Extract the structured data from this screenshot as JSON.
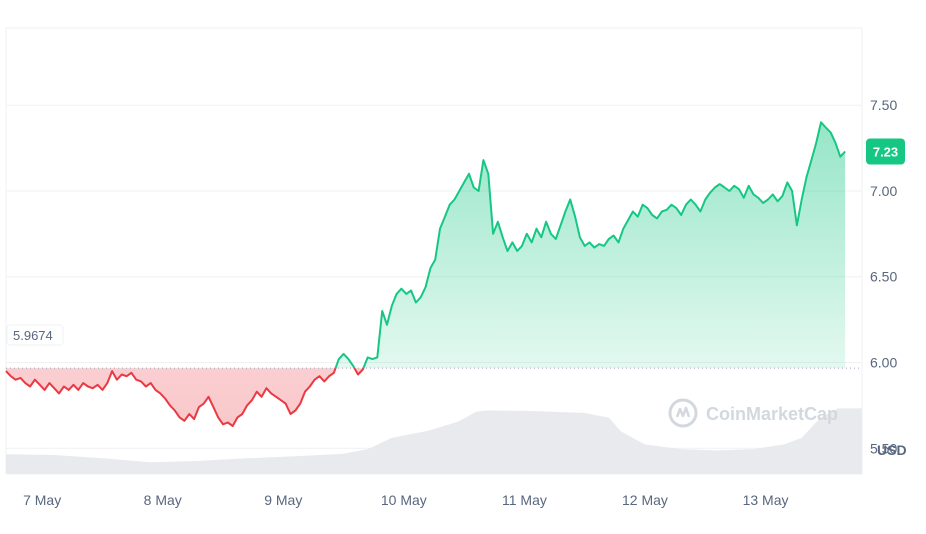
{
  "chart_data": {
    "type": "area",
    "baseline": 5.9674,
    "baseline_label": "5.9674",
    "current_value": 7.23,
    "current_value_label": "7.23",
    "unit_label": "USD",
    "watermark": "CoinMarketCap",
    "ylim": [
      5.35,
      7.95
    ],
    "y_ticks": [
      {
        "value": 7.5,
        "label": "7.50"
      },
      {
        "value": 7.0,
        "label": "7.00"
      },
      {
        "value": 6.5,
        "label": "6.50"
      },
      {
        "value": 6.0,
        "label": "6.00"
      },
      {
        "value": 5.5,
        "label": "5.50"
      }
    ],
    "x_ticks": [
      {
        "value": 0.3,
        "label": "7 May"
      },
      {
        "value": 1.3,
        "label": "8 May"
      },
      {
        "value": 2.3,
        "label": "9 May"
      },
      {
        "value": 3.3,
        "label": "10 May"
      },
      {
        "value": 4.3,
        "label": "11 May"
      },
      {
        "value": 5.3,
        "label": "12 May"
      },
      {
        "value": 6.3,
        "label": "13 May"
      }
    ],
    "xlim": [
      0,
      7.1
    ],
    "grid": true,
    "colors": {
      "up": "#16c784",
      "down": "#ea3943",
      "up_fill": "#16c784",
      "down_fill": "#ea3943",
      "volume": "#e6e8ec",
      "grid": "#f0f1f3",
      "axis_text": "#58667e",
      "badge": "#16c784"
    },
    "price_series": {
      "name": "",
      "points": [
        [
          0.0,
          5.95
        ],
        [
          0.04,
          5.92
        ],
        [
          0.08,
          5.9
        ],
        [
          0.12,
          5.91
        ],
        [
          0.16,
          5.88
        ],
        [
          0.2,
          5.86
        ],
        [
          0.24,
          5.9
        ],
        [
          0.28,
          5.87
        ],
        [
          0.32,
          5.84
        ],
        [
          0.36,
          5.88
        ],
        [
          0.4,
          5.85
        ],
        [
          0.44,
          5.82
        ],
        [
          0.48,
          5.86
        ],
        [
          0.52,
          5.84
        ],
        [
          0.56,
          5.87
        ],
        [
          0.6,
          5.84
        ],
        [
          0.64,
          5.88
        ],
        [
          0.68,
          5.86
        ],
        [
          0.72,
          5.85
        ],
        [
          0.76,
          5.87
        ],
        [
          0.8,
          5.84
        ],
        [
          0.84,
          5.88
        ],
        [
          0.88,
          5.95
        ],
        [
          0.92,
          5.9
        ],
        [
          0.96,
          5.93
        ],
        [
          1.0,
          5.92
        ],
        [
          1.04,
          5.94
        ],
        [
          1.08,
          5.9
        ],
        [
          1.12,
          5.89
        ],
        [
          1.16,
          5.86
        ],
        [
          1.2,
          5.88
        ],
        [
          1.24,
          5.84
        ],
        [
          1.28,
          5.82
        ],
        [
          1.32,
          5.79
        ],
        [
          1.36,
          5.75
        ],
        [
          1.4,
          5.72
        ],
        [
          1.44,
          5.68
        ],
        [
          1.48,
          5.66
        ],
        [
          1.52,
          5.7
        ],
        [
          1.56,
          5.67
        ],
        [
          1.6,
          5.74
        ],
        [
          1.64,
          5.76
        ],
        [
          1.68,
          5.8
        ],
        [
          1.72,
          5.74
        ],
        [
          1.76,
          5.68
        ],
        [
          1.8,
          5.64
        ],
        [
          1.84,
          5.65
        ],
        [
          1.88,
          5.63
        ],
        [
          1.92,
          5.68
        ],
        [
          1.96,
          5.7
        ],
        [
          2.0,
          5.75
        ],
        [
          2.04,
          5.78
        ],
        [
          2.08,
          5.83
        ],
        [
          2.12,
          5.8
        ],
        [
          2.16,
          5.85
        ],
        [
          2.2,
          5.82
        ],
        [
          2.24,
          5.8
        ],
        [
          2.28,
          5.78
        ],
        [
          2.32,
          5.76
        ],
        [
          2.36,
          5.7
        ],
        [
          2.4,
          5.72
        ],
        [
          2.44,
          5.76
        ],
        [
          2.48,
          5.83
        ],
        [
          2.52,
          5.86
        ],
        [
          2.56,
          5.9
        ],
        [
          2.6,
          5.92
        ],
        [
          2.64,
          5.89
        ],
        [
          2.68,
          5.92
        ],
        [
          2.72,
          5.94
        ],
        [
          2.76,
          6.02
        ],
        [
          2.8,
          6.05
        ],
        [
          2.84,
          6.02
        ],
        [
          2.88,
          5.98
        ],
        [
          2.92,
          5.93
        ],
        [
          2.96,
          5.96
        ],
        [
          3.0,
          6.03
        ],
        [
          3.04,
          6.02
        ],
        [
          3.08,
          6.03
        ],
        [
          3.12,
          6.3
        ],
        [
          3.16,
          6.22
        ],
        [
          3.2,
          6.33
        ],
        [
          3.24,
          6.4
        ],
        [
          3.28,
          6.43
        ],
        [
          3.32,
          6.4
        ],
        [
          3.36,
          6.42
        ],
        [
          3.4,
          6.35
        ],
        [
          3.44,
          6.38
        ],
        [
          3.48,
          6.44
        ],
        [
          3.52,
          6.55
        ],
        [
          3.56,
          6.6
        ],
        [
          3.6,
          6.78
        ],
        [
          3.64,
          6.85
        ],
        [
          3.68,
          6.92
        ],
        [
          3.72,
          6.95
        ],
        [
          3.76,
          7.0
        ],
        [
          3.8,
          7.05
        ],
        [
          3.84,
          7.1
        ],
        [
          3.88,
          7.02
        ],
        [
          3.92,
          7.0
        ],
        [
          3.96,
          7.18
        ],
        [
          4.0,
          7.1
        ],
        [
          4.04,
          6.75
        ],
        [
          4.08,
          6.82
        ],
        [
          4.12,
          6.73
        ],
        [
          4.16,
          6.65
        ],
        [
          4.2,
          6.7
        ],
        [
          4.24,
          6.65
        ],
        [
          4.28,
          6.68
        ],
        [
          4.32,
          6.75
        ],
        [
          4.36,
          6.7
        ],
        [
          4.4,
          6.78
        ],
        [
          4.44,
          6.73
        ],
        [
          4.48,
          6.82
        ],
        [
          4.52,
          6.75
        ],
        [
          4.56,
          6.72
        ],
        [
          4.6,
          6.8
        ],
        [
          4.64,
          6.88
        ],
        [
          4.68,
          6.95
        ],
        [
          4.72,
          6.85
        ],
        [
          4.76,
          6.73
        ],
        [
          4.8,
          6.68
        ],
        [
          4.84,
          6.7
        ],
        [
          4.88,
          6.67
        ],
        [
          4.92,
          6.69
        ],
        [
          4.96,
          6.68
        ],
        [
          5.0,
          6.72
        ],
        [
          5.04,
          6.74
        ],
        [
          5.08,
          6.7
        ],
        [
          5.12,
          6.78
        ],
        [
          5.16,
          6.83
        ],
        [
          5.2,
          6.88
        ],
        [
          5.24,
          6.85
        ],
        [
          5.28,
          6.92
        ],
        [
          5.32,
          6.9
        ],
        [
          5.36,
          6.86
        ],
        [
          5.4,
          6.84
        ],
        [
          5.44,
          6.88
        ],
        [
          5.48,
          6.89
        ],
        [
          5.52,
          6.92
        ],
        [
          5.56,
          6.9
        ],
        [
          5.6,
          6.86
        ],
        [
          5.64,
          6.92
        ],
        [
          5.68,
          6.95
        ],
        [
          5.72,
          6.92
        ],
        [
          5.76,
          6.88
        ],
        [
          5.8,
          6.95
        ],
        [
          5.84,
          6.99
        ],
        [
          5.88,
          7.02
        ],
        [
          5.92,
          7.04
        ],
        [
          5.96,
          7.02
        ],
        [
          6.0,
          7.0
        ],
        [
          6.04,
          7.03
        ],
        [
          6.08,
          7.01
        ],
        [
          6.12,
          6.96
        ],
        [
          6.16,
          7.03
        ],
        [
          6.2,
          6.98
        ],
        [
          6.24,
          6.96
        ],
        [
          6.28,
          6.93
        ],
        [
          6.32,
          6.95
        ],
        [
          6.36,
          6.98
        ],
        [
          6.4,
          6.94
        ],
        [
          6.44,
          6.97
        ],
        [
          6.48,
          7.05
        ],
        [
          6.52,
          7.0
        ],
        [
          6.56,
          6.8
        ],
        [
          6.6,
          6.95
        ],
        [
          6.64,
          7.08
        ],
        [
          6.68,
          7.18
        ],
        [
          6.72,
          7.28
        ],
        [
          6.76,
          7.4
        ],
        [
          6.8,
          7.37
        ],
        [
          6.84,
          7.34
        ],
        [
          6.88,
          7.28
        ],
        [
          6.92,
          7.2
        ],
        [
          6.96,
          7.23
        ]
      ]
    },
    "volume_series": {
      "name": "",
      "ylim": [
        0,
        1
      ],
      "points": [
        [
          0.0,
          0.3
        ],
        [
          0.4,
          0.29
        ],
        [
          0.8,
          0.24
        ],
        [
          1.2,
          0.18
        ],
        [
          1.6,
          0.2
        ],
        [
          2.0,
          0.24
        ],
        [
          2.4,
          0.27
        ],
        [
          2.8,
          0.31
        ],
        [
          3.0,
          0.38
        ],
        [
          3.2,
          0.55
        ],
        [
          3.5,
          0.66
        ],
        [
          3.75,
          0.8
        ],
        [
          3.9,
          0.95
        ],
        [
          4.0,
          0.97
        ],
        [
          4.4,
          0.96
        ],
        [
          4.8,
          0.93
        ],
        [
          5.0,
          0.86
        ],
        [
          5.1,
          0.65
        ],
        [
          5.3,
          0.45
        ],
        [
          5.6,
          0.38
        ],
        [
          5.9,
          0.36
        ],
        [
          6.2,
          0.38
        ],
        [
          6.45,
          0.45
        ],
        [
          6.6,
          0.55
        ],
        [
          6.75,
          0.85
        ],
        [
          6.9,
          1.0
        ],
        [
          7.1,
          1.0
        ]
      ]
    }
  }
}
